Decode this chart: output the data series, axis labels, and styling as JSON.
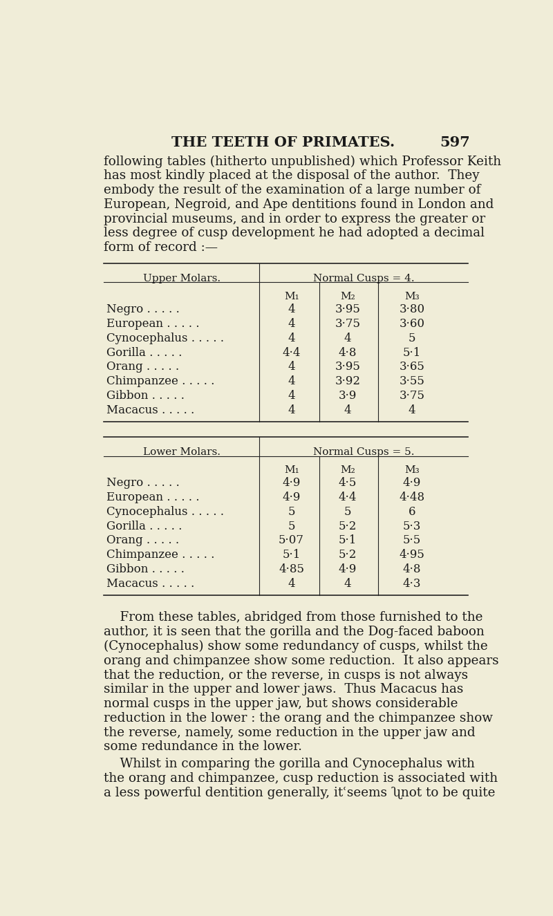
{
  "bg_color": "#f0edd8",
  "text_color": "#1a1a1a",
  "page_title": "THE TEETH OF PRIMATES.",
  "page_number": "597",
  "intro_lines": [
    "following tables (hitherto unpublished) which Professor Keith",
    "has most kindly placed at the disposal of the author.  They",
    "embody the result of the examination of a large number of",
    "European, Negroid, and Ape dentitions found in London and",
    "provincial museums, and in order to express the greater or",
    "less degree of cusp development he had adopted a decimal",
    "form of record :—"
  ],
  "upper_table": {
    "left_header": "Upper Molars.",
    "right_header": "Normal Cusps = 4.",
    "col_headers": [
      "M₁",
      "M₂",
      "M₃"
    ],
    "rows": [
      [
        "Negro",
        "4",
        "3·95",
        "3·80"
      ],
      [
        "European",
        "4",
        "3·75",
        "3·60"
      ],
      [
        "Cynocephalus .",
        "4",
        "4",
        "5"
      ],
      [
        "Gorilla",
        "4·4",
        "4·8",
        "5·1"
      ],
      [
        "Orang",
        "4",
        "3·95",
        "3·65"
      ],
      [
        "Chimpanzee .",
        "4",
        "3·92",
        "3·55"
      ],
      [
        "Gibbon .",
        "4",
        "3·9",
        "3·75"
      ],
      [
        "Macacus .",
        "4",
        "4",
        "4"
      ]
    ]
  },
  "lower_table": {
    "left_header": "Lower Molars.",
    "right_header": "Normal Cusps = 5.",
    "col_headers": [
      "M₁",
      "M₂",
      "M₃"
    ],
    "rows": [
      [
        "Negro",
        "4·9",
        "4·5",
        "4·9"
      ],
      [
        "European",
        "4·9",
        "4·4",
        "4·48"
      ],
      [
        "Cynocephalus .",
        "5",
        "5",
        "6"
      ],
      [
        "Gorilla .",
        "5",
        "5·2",
        "5·3"
      ],
      [
        "Orang .",
        "5·07",
        "5·1",
        "5·5"
      ],
      [
        "Chimpanzee .",
        "5·1",
        "5·2",
        "4·95"
      ],
      [
        "Gibbon .",
        "4·85",
        "4·9",
        "4·8"
      ],
      [
        "Macacus .",
        "4",
        "4",
        "4·3"
      ]
    ]
  },
  "body_lines_1": [
    "    From these tables, abridged from those furnished to the",
    "author, it is seen that the gorilla and the Dog-faced baboon",
    "(Cynocephalus) show some redundancy of cusps, whilst the",
    "orang and chimpanzee show some reduction.  It also appears",
    "that the reduction, or the reverse, in cusps is not always",
    "similar in the upper and lower jaws.  Thus Macacus has",
    "normal cusps in the upper jaw, but shows considerable",
    "reduction in the lower : the orang and the chimpanzee show",
    "the reverse, namely, some reduction in the upper jaw and",
    "some redundance in the lower."
  ],
  "body_lines_2": [
    "    Whilst in comparing the gorilla and Cynocephalus with",
    "the orang and chimpanzee, cusp reduction is associated with",
    "a less powerful dentition generally, itʿseems ʯnot to be quite"
  ]
}
